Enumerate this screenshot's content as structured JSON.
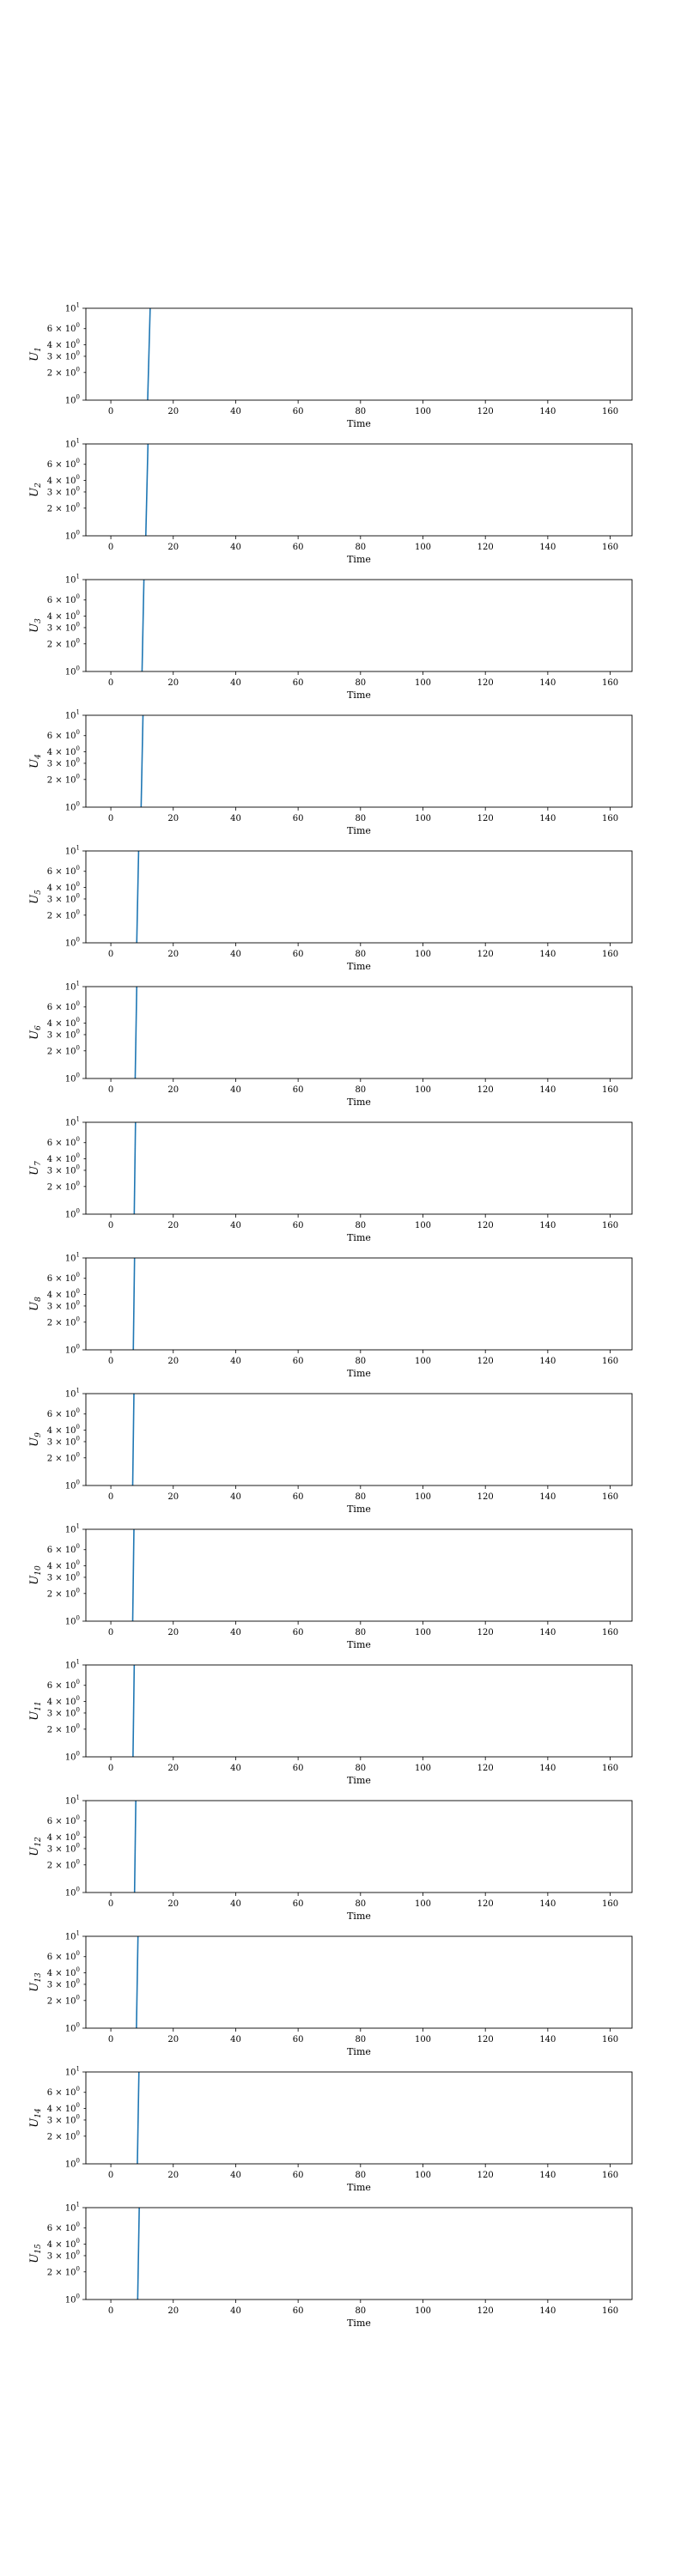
{
  "chart_data": [
    {
      "type": "line",
      "ylabel": "U",
      "ylabel_sub": "1",
      "xlabel": "Time",
      "xlim": [
        -8,
        167
      ],
      "ylim": [
        1,
        10
      ],
      "yscale": "log",
      "xticks": [
        0,
        20,
        40,
        60,
        80,
        100,
        120,
        140,
        160
      ],
      "yticks": [
        {
          "value": 1,
          "base": "10",
          "exp": "0",
          "mant": ""
        },
        {
          "value": 2,
          "base": "10",
          "exp": "0",
          "mant": "2 × "
        },
        {
          "value": 3,
          "base": "10",
          "exp": "0",
          "mant": "3 × "
        },
        {
          "value": 4,
          "base": "10",
          "exp": "0",
          "mant": "4 × "
        },
        {
          "value": 6,
          "base": "10",
          "exp": "0",
          "mant": "6 × "
        },
        {
          "value": 10,
          "base": "10",
          "exp": "1",
          "mant": ""
        }
      ],
      "grid": false,
      "series": [
        {
          "color": "#1f77b4",
          "x": [
            11.8,
            12.6
          ],
          "y": [
            1,
            10
          ]
        }
      ]
    },
    {
      "type": "line",
      "ylabel": "U",
      "ylabel_sub": "2",
      "xlabel": "Time",
      "xlim": [
        -8,
        167
      ],
      "ylim": [
        1,
        10
      ],
      "yscale": "log",
      "xticks": [
        0,
        20,
        40,
        60,
        80,
        100,
        120,
        140,
        160
      ],
      "yticks": [
        {
          "value": 1,
          "base": "10",
          "exp": "0",
          "mant": ""
        },
        {
          "value": 2,
          "base": "10",
          "exp": "0",
          "mant": "2 × "
        },
        {
          "value": 3,
          "base": "10",
          "exp": "0",
          "mant": "3 × "
        },
        {
          "value": 4,
          "base": "10",
          "exp": "0",
          "mant": "4 × "
        },
        {
          "value": 6,
          "base": "10",
          "exp": "0",
          "mant": "6 × "
        },
        {
          "value": 10,
          "base": "10",
          "exp": "1",
          "mant": ""
        }
      ],
      "grid": false,
      "series": [
        {
          "color": "#1f77b4",
          "x": [
            11.2,
            11.9
          ],
          "y": [
            1,
            10
          ]
        }
      ]
    },
    {
      "type": "line",
      "ylabel": "U",
      "ylabel_sub": "3",
      "xlabel": "Time",
      "xlim": [
        -8,
        167
      ],
      "ylim": [
        1,
        10
      ],
      "yscale": "log",
      "xticks": [
        0,
        20,
        40,
        60,
        80,
        100,
        120,
        140,
        160
      ],
      "yticks": [
        {
          "value": 1,
          "base": "10",
          "exp": "0",
          "mant": ""
        },
        {
          "value": 2,
          "base": "10",
          "exp": "0",
          "mant": "2 × "
        },
        {
          "value": 3,
          "base": "10",
          "exp": "0",
          "mant": "3 × "
        },
        {
          "value": 4,
          "base": "10",
          "exp": "0",
          "mant": "4 × "
        },
        {
          "value": 6,
          "base": "10",
          "exp": "0",
          "mant": "6 × "
        },
        {
          "value": 10,
          "base": "10",
          "exp": "1",
          "mant": ""
        }
      ],
      "grid": false,
      "series": [
        {
          "color": "#1f77b4",
          "x": [
            10.0,
            10.6
          ],
          "y": [
            1,
            10
          ]
        }
      ]
    },
    {
      "type": "line",
      "ylabel": "U",
      "ylabel_sub": "4",
      "xlabel": "Time",
      "xlim": [
        -8,
        167
      ],
      "ylim": [
        1,
        10
      ],
      "yscale": "log",
      "xticks": [
        0,
        20,
        40,
        60,
        80,
        100,
        120,
        140,
        160
      ],
      "yticks": [
        {
          "value": 1,
          "base": "10",
          "exp": "0",
          "mant": ""
        },
        {
          "value": 2,
          "base": "10",
          "exp": "0",
          "mant": "2 × "
        },
        {
          "value": 3,
          "base": "10",
          "exp": "0",
          "mant": "3 × "
        },
        {
          "value": 4,
          "base": "10",
          "exp": "0",
          "mant": "4 × "
        },
        {
          "value": 6,
          "base": "10",
          "exp": "0",
          "mant": "6 × "
        },
        {
          "value": 10,
          "base": "10",
          "exp": "1",
          "mant": ""
        }
      ],
      "grid": false,
      "series": [
        {
          "color": "#1f77b4",
          "x": [
            9.7,
            10.3
          ],
          "y": [
            1,
            10
          ]
        }
      ]
    },
    {
      "type": "line",
      "ylabel": "U",
      "ylabel_sub": "5",
      "xlabel": "Time",
      "xlim": [
        -8,
        167
      ],
      "ylim": [
        1,
        10
      ],
      "yscale": "log",
      "xticks": [
        0,
        20,
        40,
        60,
        80,
        100,
        120,
        140,
        160
      ],
      "yticks": [
        {
          "value": 1,
          "base": "10",
          "exp": "0",
          "mant": ""
        },
        {
          "value": 2,
          "base": "10",
          "exp": "0",
          "mant": "2 × "
        },
        {
          "value": 3,
          "base": "10",
          "exp": "0",
          "mant": "3 × "
        },
        {
          "value": 4,
          "base": "10",
          "exp": "0",
          "mant": "4 × "
        },
        {
          "value": 6,
          "base": "10",
          "exp": "0",
          "mant": "6 × "
        },
        {
          "value": 10,
          "base": "10",
          "exp": "1",
          "mant": ""
        }
      ],
      "grid": false,
      "series": [
        {
          "color": "#1f77b4",
          "x": [
            8.3,
            8.9
          ],
          "y": [
            1,
            10
          ]
        }
      ]
    },
    {
      "type": "line",
      "ylabel": "U",
      "ylabel_sub": "6",
      "xlabel": "Time",
      "xlim": [
        -8,
        167
      ],
      "ylim": [
        1,
        10
      ],
      "yscale": "log",
      "xticks": [
        0,
        20,
        40,
        60,
        80,
        100,
        120,
        140,
        160
      ],
      "yticks": [
        {
          "value": 1,
          "base": "10",
          "exp": "0",
          "mant": ""
        },
        {
          "value": 2,
          "base": "10",
          "exp": "0",
          "mant": "2 × "
        },
        {
          "value": 3,
          "base": "10",
          "exp": "0",
          "mant": "3 × "
        },
        {
          "value": 4,
          "base": "10",
          "exp": "0",
          "mant": "4 × "
        },
        {
          "value": 6,
          "base": "10",
          "exp": "0",
          "mant": "6 × "
        },
        {
          "value": 10,
          "base": "10",
          "exp": "1",
          "mant": ""
        }
      ],
      "grid": false,
      "series": [
        {
          "color": "#1f77b4",
          "x": [
            7.8,
            8.3
          ],
          "y": [
            1,
            10
          ]
        }
      ]
    },
    {
      "type": "line",
      "ylabel": "U",
      "ylabel_sub": "7",
      "xlabel": "Time",
      "xlim": [
        -8,
        167
      ],
      "ylim": [
        1,
        10
      ],
      "yscale": "log",
      "xticks": [
        0,
        20,
        40,
        60,
        80,
        100,
        120,
        140,
        160
      ],
      "yticks": [
        {
          "value": 1,
          "base": "10",
          "exp": "0",
          "mant": ""
        },
        {
          "value": 2,
          "base": "10",
          "exp": "0",
          "mant": "2 × "
        },
        {
          "value": 3,
          "base": "10",
          "exp": "0",
          "mant": "3 × "
        },
        {
          "value": 4,
          "base": "10",
          "exp": "0",
          "mant": "4 × "
        },
        {
          "value": 6,
          "base": "10",
          "exp": "0",
          "mant": "6 × "
        },
        {
          "value": 10,
          "base": "10",
          "exp": "1",
          "mant": ""
        }
      ],
      "grid": false,
      "series": [
        {
          "color": "#1f77b4",
          "x": [
            7.5,
            7.9
          ],
          "y": [
            1,
            10
          ]
        }
      ]
    },
    {
      "type": "line",
      "ylabel": "U",
      "ylabel_sub": "8",
      "xlabel": "Time",
      "xlim": [
        -8,
        167
      ],
      "ylim": [
        1,
        10
      ],
      "yscale": "log",
      "xticks": [
        0,
        20,
        40,
        60,
        80,
        100,
        120,
        140,
        160
      ],
      "yticks": [
        {
          "value": 1,
          "base": "10",
          "exp": "0",
          "mant": ""
        },
        {
          "value": 2,
          "base": "10",
          "exp": "0",
          "mant": "2 × "
        },
        {
          "value": 3,
          "base": "10",
          "exp": "0",
          "mant": "3 × "
        },
        {
          "value": 4,
          "base": "10",
          "exp": "0",
          "mant": "4 × "
        },
        {
          "value": 6,
          "base": "10",
          "exp": "0",
          "mant": "6 × "
        },
        {
          "value": 10,
          "base": "10",
          "exp": "1",
          "mant": ""
        }
      ],
      "grid": false,
      "series": [
        {
          "color": "#1f77b4",
          "x": [
            7.2,
            7.6
          ],
          "y": [
            1,
            10
          ]
        }
      ]
    },
    {
      "type": "line",
      "ylabel": "U",
      "ylabel_sub": "9",
      "xlabel": "Time",
      "xlim": [
        -8,
        167
      ],
      "ylim": [
        1,
        10
      ],
      "yscale": "log",
      "xticks": [
        0,
        20,
        40,
        60,
        80,
        100,
        120,
        140,
        160
      ],
      "yticks": [
        {
          "value": 1,
          "base": "10",
          "exp": "0",
          "mant": ""
        },
        {
          "value": 2,
          "base": "10",
          "exp": "0",
          "mant": "2 × "
        },
        {
          "value": 3,
          "base": "10",
          "exp": "0",
          "mant": "3 × "
        },
        {
          "value": 4,
          "base": "10",
          "exp": "0",
          "mant": "4 × "
        },
        {
          "value": 6,
          "base": "10",
          "exp": "0",
          "mant": "6 × "
        },
        {
          "value": 10,
          "base": "10",
          "exp": "1",
          "mant": ""
        }
      ],
      "grid": false,
      "series": [
        {
          "color": "#1f77b4",
          "x": [
            7.0,
            7.4
          ],
          "y": [
            1,
            10
          ]
        }
      ]
    },
    {
      "type": "line",
      "ylabel": "U",
      "ylabel_sub": "10",
      "xlabel": "Time",
      "xlim": [
        -8,
        167
      ],
      "ylim": [
        1,
        10
      ],
      "yscale": "log",
      "xticks": [
        0,
        20,
        40,
        60,
        80,
        100,
        120,
        140,
        160
      ],
      "yticks": [
        {
          "value": 1,
          "base": "10",
          "exp": "0",
          "mant": ""
        },
        {
          "value": 2,
          "base": "10",
          "exp": "0",
          "mant": "2 × "
        },
        {
          "value": 3,
          "base": "10",
          "exp": "0",
          "mant": "3 × "
        },
        {
          "value": 4,
          "base": "10",
          "exp": "0",
          "mant": "4 × "
        },
        {
          "value": 6,
          "base": "10",
          "exp": "0",
          "mant": "6 × "
        },
        {
          "value": 10,
          "base": "10",
          "exp": "1",
          "mant": ""
        }
      ],
      "grid": false,
      "series": [
        {
          "color": "#1f77b4",
          "x": [
            7.0,
            7.4
          ],
          "y": [
            1,
            10
          ]
        }
      ]
    },
    {
      "type": "line",
      "ylabel": "U",
      "ylabel_sub": "11",
      "xlabel": "Time",
      "xlim": [
        -8,
        167
      ],
      "ylim": [
        1,
        10
      ],
      "yscale": "log",
      "xticks": [
        0,
        20,
        40,
        60,
        80,
        100,
        120,
        140,
        160
      ],
      "yticks": [
        {
          "value": 1,
          "base": "10",
          "exp": "0",
          "mant": ""
        },
        {
          "value": 2,
          "base": "10",
          "exp": "0",
          "mant": "2 × "
        },
        {
          "value": 3,
          "base": "10",
          "exp": "0",
          "mant": "3 × "
        },
        {
          "value": 4,
          "base": "10",
          "exp": "0",
          "mant": "4 × "
        },
        {
          "value": 6,
          "base": "10",
          "exp": "0",
          "mant": "6 × "
        },
        {
          "value": 10,
          "base": "10",
          "exp": "1",
          "mant": ""
        }
      ],
      "grid": false,
      "series": [
        {
          "color": "#1f77b4",
          "x": [
            7.1,
            7.5
          ],
          "y": [
            1,
            10
          ]
        }
      ]
    },
    {
      "type": "line",
      "ylabel": "U",
      "ylabel_sub": "12",
      "xlabel": "Time",
      "xlim": [
        -8,
        167
      ],
      "ylim": [
        1,
        10
      ],
      "yscale": "log",
      "xticks": [
        0,
        20,
        40,
        60,
        80,
        100,
        120,
        140,
        160
      ],
      "yticks": [
        {
          "value": 1,
          "base": "10",
          "exp": "0",
          "mant": ""
        },
        {
          "value": 2,
          "base": "10",
          "exp": "0",
          "mant": "2 × "
        },
        {
          "value": 3,
          "base": "10",
          "exp": "0",
          "mant": "3 × "
        },
        {
          "value": 4,
          "base": "10",
          "exp": "0",
          "mant": "4 × "
        },
        {
          "value": 6,
          "base": "10",
          "exp": "0",
          "mant": "6 × "
        },
        {
          "value": 10,
          "base": "10",
          "exp": "1",
          "mant": ""
        }
      ],
      "grid": false,
      "series": [
        {
          "color": "#1f77b4",
          "x": [
            7.6,
            8.0
          ],
          "y": [
            1,
            10
          ]
        }
      ]
    },
    {
      "type": "line",
      "ylabel": "U",
      "ylabel_sub": "13",
      "xlabel": "Time",
      "xlim": [
        -8,
        167
      ],
      "ylim": [
        1,
        10
      ],
      "yscale": "log",
      "xticks": [
        0,
        20,
        40,
        60,
        80,
        100,
        120,
        140,
        160
      ],
      "yticks": [
        {
          "value": 1,
          "base": "10",
          "exp": "0",
          "mant": ""
        },
        {
          "value": 2,
          "base": "10",
          "exp": "0",
          "mant": "2 × "
        },
        {
          "value": 3,
          "base": "10",
          "exp": "0",
          "mant": "3 × "
        },
        {
          "value": 4,
          "base": "10",
          "exp": "0",
          "mant": "4 × "
        },
        {
          "value": 6,
          "base": "10",
          "exp": "0",
          "mant": "6 × "
        },
        {
          "value": 10,
          "base": "10",
          "exp": "1",
          "mant": ""
        }
      ],
      "grid": false,
      "series": [
        {
          "color": "#1f77b4",
          "x": [
            8.2,
            8.7
          ],
          "y": [
            1,
            10
          ]
        }
      ]
    },
    {
      "type": "line",
      "ylabel": "U",
      "ylabel_sub": "14",
      "xlabel": "Time",
      "xlim": [
        -8,
        167
      ],
      "ylim": [
        1,
        10
      ],
      "yscale": "log",
      "xticks": [
        0,
        20,
        40,
        60,
        80,
        100,
        120,
        140,
        160
      ],
      "yticks": [
        {
          "value": 1,
          "base": "10",
          "exp": "0",
          "mant": ""
        },
        {
          "value": 2,
          "base": "10",
          "exp": "0",
          "mant": "2 × "
        },
        {
          "value": 3,
          "base": "10",
          "exp": "0",
          "mant": "3 × "
        },
        {
          "value": 4,
          "base": "10",
          "exp": "0",
          "mant": "4 × "
        },
        {
          "value": 6,
          "base": "10",
          "exp": "0",
          "mant": "6 × "
        },
        {
          "value": 10,
          "base": "10",
          "exp": "1",
          "mant": ""
        }
      ],
      "grid": false,
      "series": [
        {
          "color": "#1f77b4",
          "x": [
            8.5,
            9.0
          ],
          "y": [
            1,
            10
          ]
        }
      ]
    },
    {
      "type": "line",
      "ylabel": "U",
      "ylabel_sub": "15",
      "xlabel": "Time",
      "xlim": [
        -8,
        167
      ],
      "ylim": [
        1,
        10
      ],
      "yscale": "log",
      "xticks": [
        0,
        20,
        40,
        60,
        80,
        100,
        120,
        140,
        160
      ],
      "yticks": [
        {
          "value": 1,
          "base": "10",
          "exp": "0",
          "mant": ""
        },
        {
          "value": 2,
          "base": "10",
          "exp": "0",
          "mant": "2 × "
        },
        {
          "value": 3,
          "base": "10",
          "exp": "0",
          "mant": "3 × "
        },
        {
          "value": 4,
          "base": "10",
          "exp": "0",
          "mant": "4 × "
        },
        {
          "value": 6,
          "base": "10",
          "exp": "0",
          "mant": "6 × "
        },
        {
          "value": 10,
          "base": "10",
          "exp": "1",
          "mant": ""
        }
      ],
      "grid": false,
      "series": [
        {
          "color": "#1f77b4",
          "x": [
            8.6,
            9.1
          ],
          "y": [
            1,
            10
          ]
        }
      ]
    }
  ]
}
